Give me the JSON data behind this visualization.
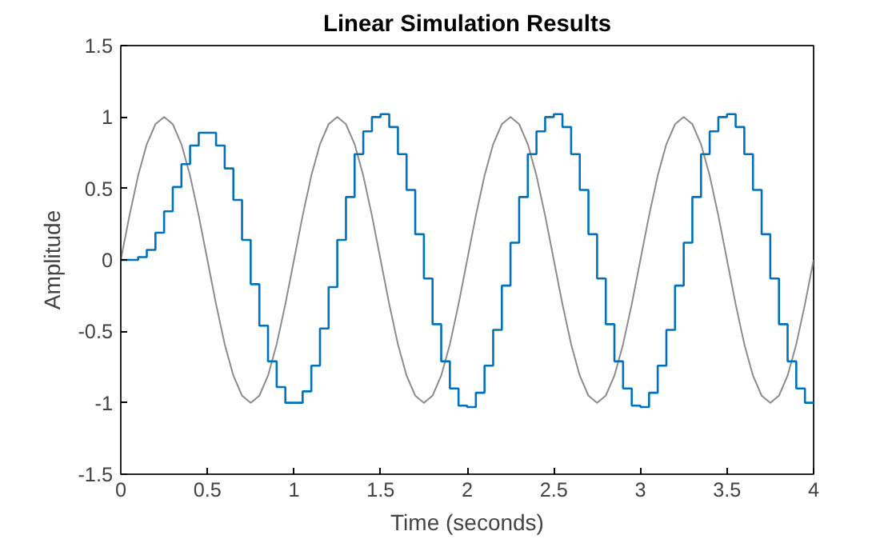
{
  "chart_data": {
    "type": "line",
    "title": "Linear Simulation Results",
    "xlabel": "Time (seconds)",
    "ylabel": "Amplitude",
    "x": [
      0,
      0.05,
      0.1,
      0.15,
      0.2,
      0.25,
      0.3,
      0.35,
      0.4,
      0.45,
      0.5,
      0.55,
      0.6,
      0.65,
      0.7,
      0.75,
      0.8,
      0.85,
      0.9,
      0.95,
      1,
      1.05,
      1.1,
      1.15,
      1.2,
      1.25,
      1.3,
      1.35,
      1.4,
      1.45,
      1.5,
      1.55,
      1.6,
      1.65,
      1.7,
      1.75,
      1.8,
      1.85,
      1.9,
      1.95,
      2,
      2.05,
      2.1,
      2.15,
      2.2,
      2.25,
      2.3,
      2.35,
      2.4,
      2.45,
      2.5,
      2.55,
      2.6,
      2.65,
      2.7,
      2.75,
      2.8,
      2.85,
      2.9,
      2.95,
      3,
      3.05,
      3.1,
      3.15,
      3.2,
      3.25,
      3.3,
      3.35,
      3.4,
      3.45,
      3.5,
      3.55,
      3.6,
      3.65,
      3.7,
      3.75,
      3.8,
      3.85,
      3.9,
      3.95,
      4
    ],
    "series": [
      {
        "color": "#8c8c8c",
        "values": [
          0,
          0.31,
          0.59,
          0.81,
          0.95,
          1,
          0.95,
          0.81,
          0.59,
          0.31,
          0,
          -0.31,
          -0.59,
          -0.81,
          -0.95,
          -1,
          -0.95,
          -0.81,
          -0.59,
          -0.31,
          0,
          0.31,
          0.59,
          0.81,
          0.95,
          1,
          0.95,
          0.81,
          0.59,
          0.31,
          0,
          -0.31,
          -0.59,
          -0.81,
          -0.95,
          -1,
          -0.95,
          -0.81,
          -0.59,
          -0.31,
          0,
          0.31,
          0.59,
          0.81,
          0.95,
          1,
          0.95,
          0.81,
          0.59,
          0.31,
          0,
          -0.31,
          -0.59,
          -0.81,
          -0.95,
          -1,
          -0.95,
          -0.81,
          -0.59,
          -0.31,
          0,
          0.31,
          0.59,
          0.81,
          0.95,
          1,
          0.95,
          0.81,
          0.59,
          0.31,
          0,
          -0.31,
          -0.59,
          -0.81,
          -0.95,
          -1,
          -0.95,
          -0.81,
          -0.59,
          -0.31,
          0
        ]
      },
      {
        "type": "step",
        "color": "#0072bd",
        "values": [
          0,
          0,
          0.02,
          0.07,
          0.19,
          0.34,
          0.51,
          0.67,
          0.8,
          0.89,
          0.89,
          0.8,
          0.64,
          0.42,
          0.14,
          -0.17,
          -0.46,
          -0.71,
          -0.89,
          -1.0,
          -1.0,
          -0.92,
          -0.74,
          -0.48,
          -0.19,
          0.14,
          0.44,
          0.74,
          0.9,
          1.0,
          1.02,
          0.93,
          0.74,
          0.49,
          0.18,
          -0.13,
          -0.45,
          -0.71,
          -0.9,
          -1.02,
          -1.03,
          -0.93,
          -0.74,
          -0.49,
          -0.18,
          0.12,
          0.44,
          0.74,
          0.9,
          1.0,
          1.02,
          0.93,
          0.74,
          0.49,
          0.18,
          -0.13,
          -0.45,
          -0.71,
          -0.9,
          -1.02,
          -1.03,
          -0.93,
          -0.74,
          -0.49,
          -0.18,
          0.12,
          0.44,
          0.74,
          0.9,
          1.0,
          1.02,
          0.93,
          0.74,
          0.49,
          0.18,
          -0.13,
          -0.45,
          -0.71,
          -0.9,
          -1.0,
          -1.0
        ]
      }
    ],
    "xlim": [
      0,
      4
    ],
    "xticks": [
      0,
      0.5,
      1,
      1.5,
      2,
      2.5,
      3,
      3.5,
      4
    ],
    "ylim": [
      -1.5,
      1.5
    ],
    "yticks": [
      -1.5,
      -1,
      -0.5,
      0,
      0.5,
      1,
      1.5
    ]
  }
}
